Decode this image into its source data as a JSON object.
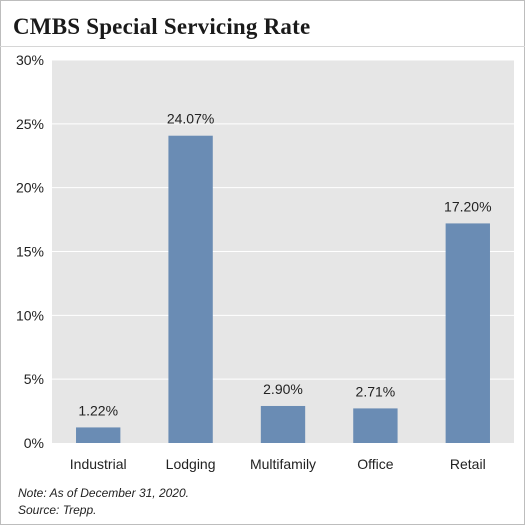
{
  "title": "CMBS Special Servicing Rate",
  "notes": {
    "note": "Note: As of December 31, 2020.",
    "source": "Source: Trepp."
  },
  "colors": {
    "bar": "#6a8cb4",
    "plot_background": "#e6e6e6",
    "gridline": "#ffffff"
  },
  "chart_data": {
    "type": "bar",
    "title": "CMBS Special Servicing Rate",
    "categories": [
      "Industrial",
      "Lodging",
      "Multifamily",
      "Office",
      "Retail"
    ],
    "values": [
      1.22,
      24.07,
      2.9,
      2.71,
      17.2
    ],
    "data_labels": [
      "1.22%",
      "24.07%",
      "2.90%",
      "2.71%",
      "17.20%"
    ],
    "yticks": [
      0,
      5,
      10,
      15,
      20,
      25,
      30
    ],
    "ytick_labels": [
      "0%",
      "5%",
      "10%",
      "15%",
      "20%",
      "25%",
      "30%"
    ],
    "ylim": [
      0,
      30
    ],
    "xlabel": "",
    "ylabel": "",
    "grid": true,
    "legend": "none"
  }
}
